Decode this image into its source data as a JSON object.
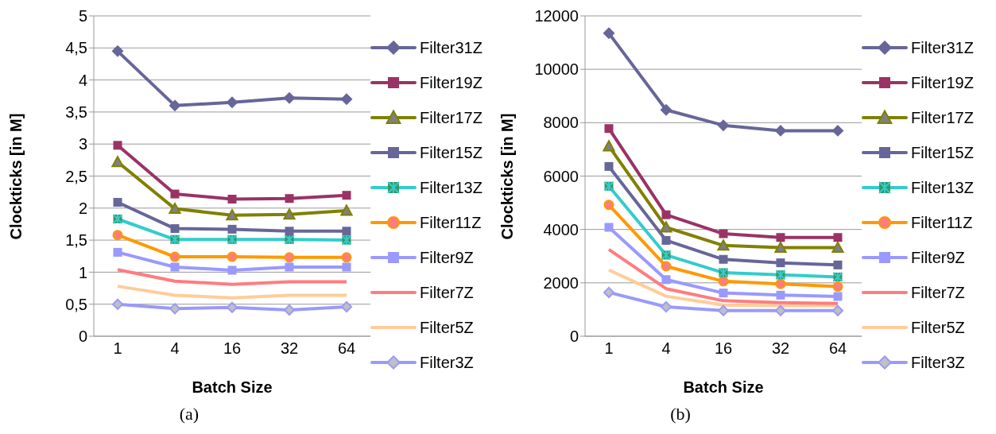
{
  "chart_data": [
    {
      "type": "line",
      "xlabel": "Batch Size",
      "ylabel": "Clockticks [in M]",
      "categories": [
        "1",
        "4",
        "16",
        "32",
        "64"
      ],
      "ylim": [
        0,
        5
      ],
      "yticks": [
        0,
        {
          "value": 0.5,
          "label": "0,5"
        },
        1,
        {
          "value": 1.5,
          "label": "1,5"
        },
        2,
        {
          "value": 2.5,
          "label": "2,5"
        },
        3,
        {
          "value": 3.5,
          "label": "3,5"
        },
        4,
        {
          "value": 4.5,
          "label": "4,5"
        },
        5
      ],
      "grid": "y",
      "legend": "right",
      "annotations": [
        "(a)"
      ],
      "series": [
        {
          "name": "Filter31Z",
          "color": "#666699",
          "marker": "diamond",
          "values": [
            4.45,
            3.6,
            3.65,
            3.72,
            3.7
          ]
        },
        {
          "name": "Filter19Z",
          "color": "#993366",
          "marker": "square",
          "values": [
            2.98,
            2.22,
            2.14,
            2.15,
            2.2
          ]
        },
        {
          "name": "Filter17Z",
          "color": "#808000",
          "marker": "triangle",
          "values": [
            2.72,
            1.99,
            1.89,
            1.9,
            1.96
          ]
        },
        {
          "name": "Filter15Z",
          "color": "#666699",
          "marker": "square",
          "values": [
            2.09,
            1.68,
            1.67,
            1.64,
            1.64
          ]
        },
        {
          "name": "Filter13Z",
          "color": "#33cccc",
          "marker": "cross",
          "values": [
            1.83,
            1.51,
            1.51,
            1.51,
            1.5
          ]
        },
        {
          "name": "Filter11Z",
          "color": "#ff9900",
          "marker": "circle",
          "values": [
            1.58,
            1.24,
            1.24,
            1.23,
            1.23
          ]
        },
        {
          "name": "Filter9Z",
          "color": "#9999ff",
          "marker": "square",
          "values": [
            1.31,
            1.08,
            1.03,
            1.08,
            1.08
          ]
        },
        {
          "name": "Filter7Z",
          "color": "#ff7c80",
          "marker": "none",
          "values": [
            1.04,
            0.86,
            0.81,
            0.85,
            0.85
          ]
        },
        {
          "name": "Filter5Z",
          "color": "#ffcc99",
          "marker": "none",
          "values": [
            0.78,
            0.64,
            0.6,
            0.64,
            0.64
          ]
        },
        {
          "name": "Filter3Z",
          "color": "#9999ff",
          "marker": "diamond",
          "values": [
            0.5,
            0.43,
            0.45,
            0.41,
            0.46
          ]
        }
      ]
    },
    {
      "type": "line",
      "xlabel": "Batch Size",
      "ylabel": "Clockticks [in M]",
      "categories": [
        "1",
        "4",
        "16",
        "32",
        "64"
      ],
      "ylim": [
        0,
        12000
      ],
      "yticks": [
        0,
        2000,
        4000,
        6000,
        8000,
        10000,
        12000
      ],
      "grid": "y",
      "legend": "right",
      "annotations": [
        "(b)"
      ],
      "series": [
        {
          "name": "Filter31Z",
          "color": "#666699",
          "marker": "diamond",
          "values": [
            11350,
            8480,
            7900,
            7700,
            7700
          ]
        },
        {
          "name": "Filter19Z",
          "color": "#993366",
          "marker": "square",
          "values": [
            7780,
            4550,
            3840,
            3700,
            3700
          ]
        },
        {
          "name": "Filter17Z",
          "color": "#808000",
          "marker": "triangle",
          "values": [
            7120,
            4080,
            3400,
            3320,
            3320
          ]
        },
        {
          "name": "Filter15Z",
          "color": "#666699",
          "marker": "square",
          "values": [
            6360,
            3590,
            2880,
            2750,
            2670
          ]
        },
        {
          "name": "Filter13Z",
          "color": "#33cccc",
          "marker": "cross",
          "values": [
            5620,
            3040,
            2380,
            2300,
            2220
          ]
        },
        {
          "name": "Filter11Z",
          "color": "#ff9900",
          "marker": "circle",
          "values": [
            4920,
            2620,
            2060,
            1960,
            1860
          ]
        },
        {
          "name": "Filter9Z",
          "color": "#9999ff",
          "marker": "square",
          "values": [
            4080,
            2120,
            1620,
            1540,
            1490
          ]
        },
        {
          "name": "Filter7Z",
          "color": "#ff7c80",
          "marker": "none",
          "values": [
            3250,
            1780,
            1330,
            1260,
            1230
          ]
        },
        {
          "name": "Filter5Z",
          "color": "#ffcc99",
          "marker": "none",
          "values": [
            2480,
            1500,
            1170,
            1150,
            1150
          ]
        },
        {
          "name": "Filter3Z",
          "color": "#9999ff",
          "marker": "diamond",
          "values": [
            1640,
            1100,
            960,
            960,
            960
          ]
        }
      ]
    }
  ]
}
